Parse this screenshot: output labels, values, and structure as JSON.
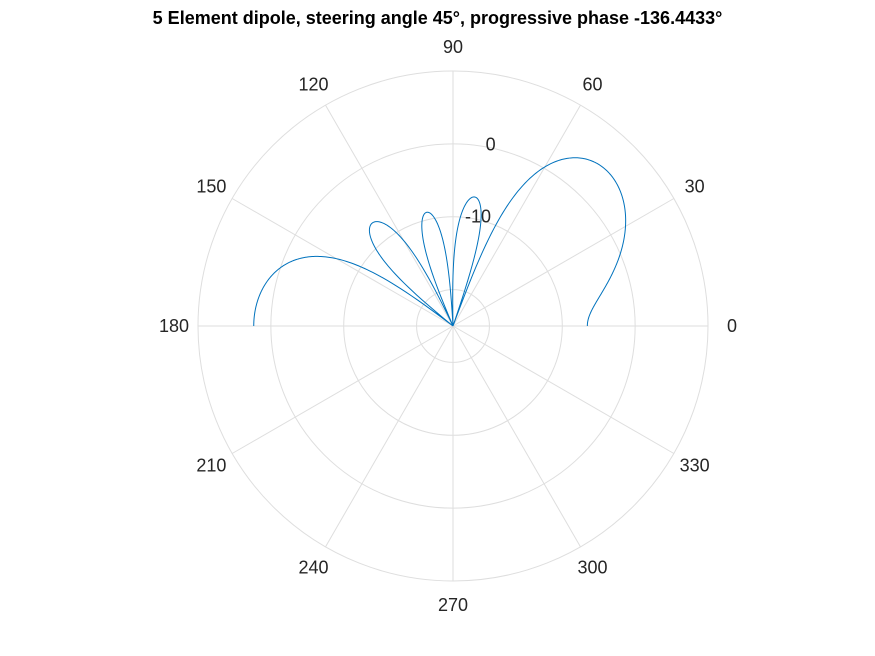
{
  "chart_data": {
    "type": "polar-line",
    "title": "5 Element dipole, steering angle 45°, progressive phase -136.4433°",
    "theta_ticks": [
      "0",
      "30",
      "60",
      "90",
      "120",
      "150",
      "180",
      "210",
      "240",
      "270",
      "300",
      "330"
    ],
    "theta_tick_values_deg": [
      0,
      30,
      60,
      90,
      120,
      150,
      180,
      210,
      240,
      270,
      300,
      330
    ],
    "r_ticks": [
      "-10",
      "0"
    ],
    "r_tick_values": [
      -10,
      0
    ],
    "r_axis_angle_deg": 80,
    "r_lim": [
      -25,
      10
    ],
    "grid": true,
    "series": [
      {
        "color": "#0072bd",
        "note_domain": "theta 0 to 180 deg; r = normalized array factor in dB, clipped at -25",
        "element_count": 5,
        "steering_angle_deg": 45,
        "progressive_phase_deg": -136.4433,
        "peak_db": 5.0
      }
    ]
  }
}
